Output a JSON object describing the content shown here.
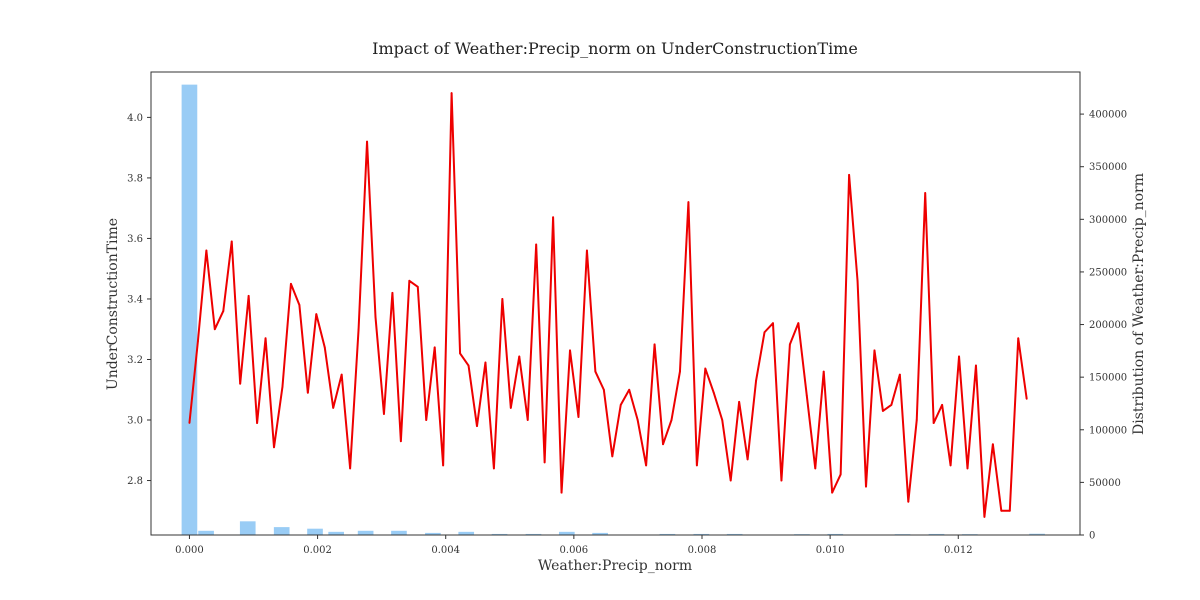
{
  "chart_data": {
    "type": "line",
    "title": "Impact of Weather:Precip_norm on UnderConstructionTime",
    "xlabel": "Weather:Precip_norm",
    "ylabel": "UnderConstructionTime",
    "y2label": "Distribution of Weather:Precip_norm",
    "xlim": [
      -0.0006,
      0.0139
    ],
    "ylim": [
      2.62,
      4.15
    ],
    "y2lim": [
      0,
      440000
    ],
    "x_ticks": [
      0.0,
      0.002,
      0.004,
      0.006,
      0.008,
      0.01,
      0.012
    ],
    "x_tick_labels": [
      "0.000",
      "0.002",
      "0.004",
      "0.006",
      "0.008",
      "0.010",
      "0.012"
    ],
    "y_ticks": [
      2.8,
      3.0,
      3.2,
      3.4,
      3.6,
      3.8,
      4.0
    ],
    "y_tick_labels": [
      "2.8",
      "3.0",
      "3.2",
      "3.4",
      "3.6",
      "3.8",
      "4.0"
    ],
    "y2_ticks": [
      0,
      50000,
      100000,
      150000,
      200000,
      250000,
      300000,
      350000,
      400000
    ],
    "y2_tick_labels": [
      "0",
      "50000",
      "100000",
      "150000",
      "200000",
      "250000",
      "300000",
      "350000",
      "400000"
    ],
    "grid": false,
    "series": [
      {
        "type": "line",
        "color": "#ee0000",
        "x": [
          0.0,
          0.000132,
          0.000264,
          0.000396,
          0.000528,
          0.00066,
          0.000792,
          0.000924,
          0.001056,
          0.001188,
          0.00132,
          0.001452,
          0.001584,
          0.001716,
          0.001848,
          0.00198,
          0.002112,
          0.002244,
          0.002376,
          0.002508,
          0.00264,
          0.002772,
          0.002904,
          0.003036,
          0.003168,
          0.0033,
          0.003432,
          0.003564,
          0.003696,
          0.003828,
          0.00396,
          0.004092,
          0.004224,
          0.004356,
          0.004488,
          0.00462,
          0.004752,
          0.004884,
          0.005016,
          0.005148,
          0.00528,
          0.005412,
          0.005544,
          0.005676,
          0.005808,
          0.00594,
          0.006072,
          0.006204,
          0.006336,
          0.006468,
          0.0066,
          0.006732,
          0.006864,
          0.006996,
          0.007128,
          0.00726,
          0.007392,
          0.007524,
          0.007656,
          0.007788,
          0.00792,
          0.008052,
          0.008184,
          0.008316,
          0.008448,
          0.00858,
          0.008712,
          0.008844,
          0.008976,
          0.009108,
          0.00924,
          0.009372,
          0.009504,
          0.009636,
          0.009768,
          0.0099,
          0.010032,
          0.010164,
          0.010296,
          0.010428,
          0.01056,
          0.010692,
          0.010824,
          0.010956,
          0.011088,
          0.01122,
          0.011352,
          0.011484,
          0.011616,
          0.011748,
          0.01188,
          0.012012,
          0.012144,
          0.012276,
          0.012408,
          0.01254,
          0.012672,
          0.012804,
          0.012936,
          0.013068
        ],
        "y": [
          2.99,
          3.26,
          3.56,
          3.3,
          3.36,
          3.59,
          3.12,
          3.41,
          2.99,
          3.27,
          2.91,
          3.11,
          3.45,
          3.38,
          3.09,
          3.35,
          3.24,
          3.04,
          3.15,
          2.84,
          3.3,
          3.92,
          3.34,
          3.02,
          3.42,
          2.93,
          3.46,
          3.44,
          3.0,
          3.24,
          2.85,
          4.08,
          3.22,
          3.18,
          2.98,
          3.19,
          2.84,
          3.4,
          3.04,
          3.21,
          3.0,
          3.58,
          2.86,
          3.67,
          2.76,
          3.23,
          3.01,
          3.56,
          3.16,
          3.1,
          2.88,
          3.05,
          3.1,
          3.0,
          2.85,
          3.25,
          2.92,
          3.0,
          3.16,
          3.72,
          2.85,
          3.17,
          3.09,
          3.0,
          2.8,
          3.06,
          2.87,
          3.13,
          3.29,
          3.32,
          2.8,
          3.25,
          3.32,
          3.08,
          2.84,
          3.16,
          2.76,
          2.82,
          3.81,
          3.46,
          2.78,
          3.23,
          3.03,
          3.05,
          3.15,
          2.73,
          3.0,
          3.75,
          2.99,
          3.05,
          2.85,
          3.21,
          2.84,
          3.18,
          2.68,
          2.92,
          2.7,
          2.7,
          3.27,
          3.07
        ]
      },
      {
        "type": "bar",
        "axis": "right",
        "color": "#99ccf5",
        "bin_width": 0.00026,
        "x": [
          0.0,
          0.00026,
          0.00091,
          0.00144,
          0.00196,
          0.00229,
          0.00275,
          0.00327,
          0.0038,
          0.00432,
          0.00484,
          0.00537,
          0.00589,
          0.00641,
          0.00746,
          0.00799,
          0.00851,
          0.00956,
          0.01008,
          0.01113,
          0.01166,
          0.01218,
          0.01323
        ],
        "values": [
          428000,
          4000,
          13000,
          7500,
          6000,
          3000,
          4000,
          4000,
          2000,
          3000,
          1000,
          1000,
          3000,
          2000,
          1000,
          1000,
          1000,
          800,
          1000,
          800,
          1000,
          800,
          1200
        ]
      }
    ]
  }
}
